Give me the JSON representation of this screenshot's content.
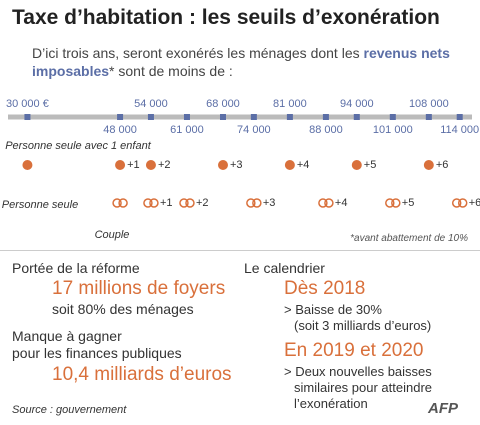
{
  "title": "Taxe d’habitation : les seuils d’exonération",
  "intro": {
    "before": "D’ici trois ans, seront exonérés les ménages dont les ",
    "highlight": "revenus nets imposables",
    "after": "* sont de moins de :"
  },
  "scale": {
    "lim": [
      27000,
      116000
    ],
    "ticks": [
      {
        "value": 30000,
        "label": "30 000 €"
      },
      {
        "value": 48000,
        "label": "48 000"
      },
      {
        "value": 54000,
        "label": "54 000"
      },
      {
        "value": 61000,
        "label": "61 000"
      },
      {
        "value": 68000,
        "label": "68 000"
      },
      {
        "value": 74000,
        "label": "74 000"
      },
      {
        "value": 81000,
        "label": "81 000"
      },
      {
        "value": 88000,
        "label": "88 000"
      },
      {
        "value": 94000,
        "label": "94 000"
      },
      {
        "value": 101000,
        "label": "101 000"
      },
      {
        "value": 108000,
        "label": "108 000"
      },
      {
        "value": 114000,
        "label": "114 000"
      }
    ]
  },
  "single": {
    "label": "Personne seule",
    "note": "Personne seule avec 1 enfant",
    "values": [
      30000,
      48000,
      54000,
      68000,
      81000,
      94000,
      108000
    ],
    "labels": [
      null,
      "+1",
      "+2",
      "+3",
      "+4",
      "+5",
      "+6"
    ]
  },
  "couple": {
    "label": "Couple",
    "values": [
      48000,
      54000,
      61000,
      74000,
      88000,
      101000,
      114000
    ],
    "labels": [
      null,
      "+1",
      "+2",
      "+3",
      "+4",
      "+5",
      "+6"
    ]
  },
  "footnote": "*avant abattement de 10%",
  "left": {
    "heading": "Portée de la réforme",
    "big": "17 millions de foyers",
    "sub": "soit 80% des ménages",
    "heading2a": "Manque à gagner",
    "heading2b": "pour les finances publiques",
    "big2": "10,4 milliards d’euros"
  },
  "right": {
    "heading": "Le calendrier",
    "date1": "Dès 2018",
    "item1a": "> Baisse de 30%",
    "item1b": "(soit 3 milliards d’euros)",
    "date2": "En 2019 et 2020",
    "item2a": "> Deux nouvelles baisses",
    "item2b": "similaires pour atteindre",
    "item2c": "l’exonération"
  },
  "source": "Source : gouvernement",
  "logo": "AFP"
}
